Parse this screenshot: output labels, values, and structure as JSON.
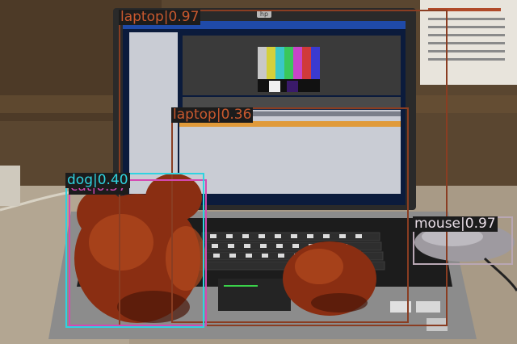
{
  "detections": [
    {
      "label": "laptop",
      "score": "0.97",
      "color": "#8a3d22",
      "text_color": "#c9592e",
      "box_norm": [
        0.2297,
        0.0282,
        0.8656,
        0.9484
      ]
    },
    {
      "label": "laptop",
      "score": "0.36",
      "color": "#8a3d22",
      "text_color": "#c9592e",
      "box_norm": [
        0.3313,
        0.3122,
        0.7906,
        0.939
      ]
    },
    {
      "label": "cat",
      "score": "0.57",
      "color": "#d449b2",
      "text_color": "#d449b2",
      "box_norm": [
        0.1328,
        0.5211,
        0.4,
        0.9484
      ]
    },
    {
      "label": "dog",
      "score": "0.40",
      "color": "#2fd3e0",
      "text_color": "#2fd3e0",
      "box_norm": [
        0.1266,
        0.5023,
        0.3953,
        0.9531
      ]
    },
    {
      "label": "mouse",
      "score": "0.97",
      "color": "#b9a7b4",
      "text_color": "#e8dde6",
      "box_norm": [
        0.7984,
        0.6291,
        0.9922,
        0.77
      ]
    }
  ],
  "label_bg": "#1c1c1c",
  "laptop_brand": "hp"
}
